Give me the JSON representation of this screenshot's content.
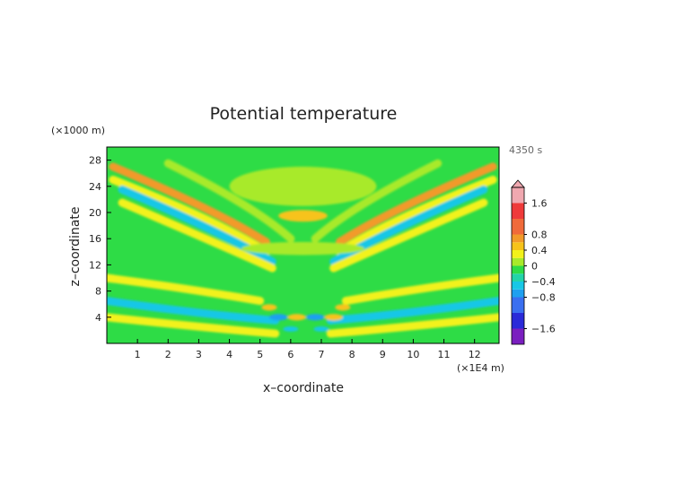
{
  "chart_data": {
    "type": "heatmap",
    "title": "Potential temperature",
    "xlabel": "x–coordinate",
    "ylabel": "z–coordinate",
    "x_unit": "(×1E4 m)",
    "y_unit": "(×1000 m)",
    "time_label": "4350 s",
    "xlim": [
      0,
      12.8
    ],
    "ylim": [
      0,
      30
    ],
    "x_ticks": [
      "1",
      "2",
      "3",
      "4",
      "5",
      "6",
      "7",
      "8",
      "9",
      "10",
      "11",
      "12"
    ],
    "y_ticks": [
      "4",
      "8",
      "12",
      "16",
      "20",
      "24",
      "28"
    ],
    "colorbar": {
      "range": [
        -2,
        2
      ],
      "levels": [
        {
          "from": -2.0,
          "to": -1.6,
          "color": "#7a1fbf"
        },
        {
          "from": -1.6,
          "to": -1.2,
          "color": "#2a2ad8"
        },
        {
          "from": -1.2,
          "to": -0.8,
          "color": "#3a6ff0"
        },
        {
          "from": -0.8,
          "to": -0.6,
          "color": "#1fa0f0"
        },
        {
          "from": -0.6,
          "to": -0.4,
          "color": "#17c7e6"
        },
        {
          "from": -0.4,
          "to": -0.2,
          "color": "#22d4a8"
        },
        {
          "from": -0.2,
          "to": 0.0,
          "color": "#2edc46"
        },
        {
          "from": 0.0,
          "to": 0.2,
          "color": "#a8ea2a"
        },
        {
          "from": 0.2,
          "to": 0.4,
          "color": "#f2f21a"
        },
        {
          "from": 0.4,
          "to": 0.6,
          "color": "#f7c31a"
        },
        {
          "from": 0.6,
          "to": 0.8,
          "color": "#f29a2a"
        },
        {
          "from": 0.8,
          "to": 1.2,
          "color": "#f06a3a"
        },
        {
          "from": 1.2,
          "to": 1.6,
          "color": "#ef3a3a"
        },
        {
          "from": 1.6,
          "to": 2.0,
          "color": "#f0a8b0"
        }
      ],
      "tick_labels": [
        "1.6",
        "0.8",
        "0.4",
        "0",
        "−0.4",
        "−0.8",
        "−1.6"
      ],
      "tick_values": [
        1.6,
        0.8,
        0.4,
        0,
        -0.4,
        -0.8,
        -1.6
      ]
    },
    "background_color": "#2edc46",
    "features": [
      {
        "kind": "band",
        "points": [
          [
            0.2,
            27.0
          ],
          [
            3.5,
            20.5
          ],
          [
            5.2,
            15.5
          ]
        ],
        "value": 0.6
      },
      {
        "kind": "band",
        "points": [
          [
            0.2,
            25.0
          ],
          [
            3.5,
            19.0
          ],
          [
            5.2,
            14.0
          ]
        ],
        "value": 0.3
      },
      {
        "kind": "band",
        "points": [
          [
            0.5,
            23.5
          ],
          [
            3.5,
            17.5
          ],
          [
            5.4,
            12.5
          ]
        ],
        "value": -0.5
      },
      {
        "kind": "band",
        "points": [
          [
            0.5,
            21.5
          ],
          [
            3.5,
            15.5
          ],
          [
            5.4,
            11.5
          ]
        ],
        "value": 0.25
      },
      {
        "kind": "band",
        "points": [
          [
            2.0,
            27.5
          ],
          [
            4.8,
            21.0
          ],
          [
            6.0,
            16.0
          ]
        ],
        "value": 0.15
      },
      {
        "kind": "band",
        "points": [
          [
            12.6,
            27.0
          ],
          [
            9.3,
            20.5
          ],
          [
            7.6,
            15.5
          ]
        ],
        "value": 0.6
      },
      {
        "kind": "band",
        "points": [
          [
            12.6,
            25.0
          ],
          [
            9.3,
            19.0
          ],
          [
            7.6,
            14.0
          ]
        ],
        "value": 0.3
      },
      {
        "kind": "band",
        "points": [
          [
            12.3,
            23.5
          ],
          [
            9.3,
            17.5
          ],
          [
            7.4,
            12.5
          ]
        ],
        "value": -0.5
      },
      {
        "kind": "band",
        "points": [
          [
            12.3,
            21.5
          ],
          [
            9.3,
            15.5
          ],
          [
            7.4,
            11.5
          ]
        ],
        "value": 0.25
      },
      {
        "kind": "band",
        "points": [
          [
            10.8,
            27.5
          ],
          [
            8.0,
            21.0
          ],
          [
            6.8,
            16.0
          ]
        ],
        "value": 0.15
      },
      {
        "kind": "band",
        "points": [
          [
            0.0,
            10.0
          ],
          [
            2.5,
            8.5
          ],
          [
            5.0,
            6.5
          ]
        ],
        "value": 0.25
      },
      {
        "kind": "band",
        "points": [
          [
            0.0,
            6.5
          ],
          [
            3.0,
            4.5
          ],
          [
            5.5,
            3.5
          ]
        ],
        "value": -0.45
      },
      {
        "kind": "band",
        "points": [
          [
            0.0,
            4.0
          ],
          [
            3.0,
            2.5
          ],
          [
            5.5,
            1.5
          ]
        ],
        "value": 0.3
      },
      {
        "kind": "band",
        "points": [
          [
            12.8,
            10.0
          ],
          [
            10.3,
            8.5
          ],
          [
            7.8,
            6.5
          ]
        ],
        "value": 0.25
      },
      {
        "kind": "band",
        "points": [
          [
            12.8,
            6.5
          ],
          [
            9.8,
            4.5
          ],
          [
            7.3,
            3.5
          ]
        ],
        "value": -0.45
      },
      {
        "kind": "band",
        "points": [
          [
            12.8,
            4.0
          ],
          [
            9.8,
            2.5
          ],
          [
            7.3,
            1.5
          ]
        ],
        "value": 0.3
      },
      {
        "kind": "blob",
        "x": 6.4,
        "y": 19.5,
        "rx": 0.8,
        "ry": 0.9,
        "value": 0.4
      },
      {
        "kind": "blob",
        "x": 6.4,
        "y": 24.0,
        "rx": 2.4,
        "ry": 3.0,
        "value": 0.15
      },
      {
        "kind": "blob",
        "x": 6.4,
        "y": 14.5,
        "rx": 2.0,
        "ry": 1.0,
        "value": 0.15
      },
      {
        "kind": "blob",
        "x": 5.6,
        "y": 4.0,
        "rx": 0.3,
        "ry": 0.5,
        "value": -0.8
      },
      {
        "kind": "blob",
        "x": 6.2,
        "y": 4.0,
        "rx": 0.3,
        "ry": 0.5,
        "value": 0.5
      },
      {
        "kind": "blob",
        "x": 6.8,
        "y": 4.0,
        "rx": 0.3,
        "ry": 0.5,
        "value": -0.8
      },
      {
        "kind": "blob",
        "x": 7.4,
        "y": 4.0,
        "rx": 0.3,
        "ry": 0.5,
        "value": 0.5
      },
      {
        "kind": "blob",
        "x": 5.3,
        "y": 5.5,
        "rx": 0.25,
        "ry": 0.5,
        "value": 0.4
      },
      {
        "kind": "blob",
        "x": 7.7,
        "y": 5.5,
        "rx": 0.25,
        "ry": 0.5,
        "value": 0.4
      },
      {
        "kind": "blob",
        "x": 6.0,
        "y": 2.2,
        "rx": 0.25,
        "ry": 0.4,
        "value": -0.6
      },
      {
        "kind": "blob",
        "x": 7.0,
        "y": 2.2,
        "rx": 0.25,
        "ry": 0.4,
        "value": -0.6
      }
    ]
  }
}
